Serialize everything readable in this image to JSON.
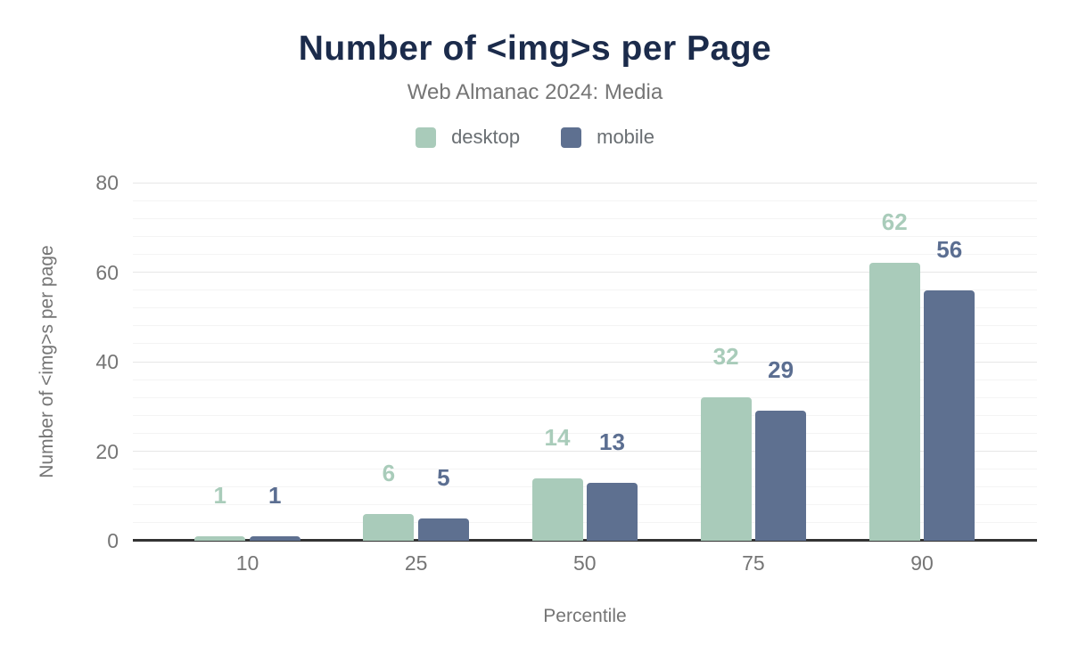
{
  "chart_data": {
    "type": "bar",
    "title": "Number of <img>s per Page",
    "subtitle": "Web Almanac 2024: Media",
    "xlabel": "Percentile",
    "ylabel": "Number of <img>s per page",
    "categories": [
      "10",
      "25",
      "50",
      "75",
      "90"
    ],
    "series": [
      {
        "name": "desktop",
        "color": "#a9cbba",
        "label_color": "#a9ccba",
        "values": [
          1,
          6,
          14,
          32,
          62
        ]
      },
      {
        "name": "mobile",
        "color": "#5e7090",
        "label_color": "#5b6e91",
        "values": [
          1,
          5,
          13,
          29,
          56
        ]
      }
    ],
    "ylim": [
      0,
      80
    ],
    "yticks": [
      0,
      20,
      40,
      60,
      80
    ],
    "minor_grid_step": 4,
    "grid": "major+minor",
    "legend_position": "top"
  },
  "colors": {
    "title": "#1b2b4b",
    "subtitle": "#757575",
    "axis_text": "#757575",
    "legend_text": "#696e72",
    "axis_line": "#333333",
    "grid_major": "#e7e7e7",
    "grid_minor": "#f4f4f4",
    "background": "#ffffff"
  }
}
